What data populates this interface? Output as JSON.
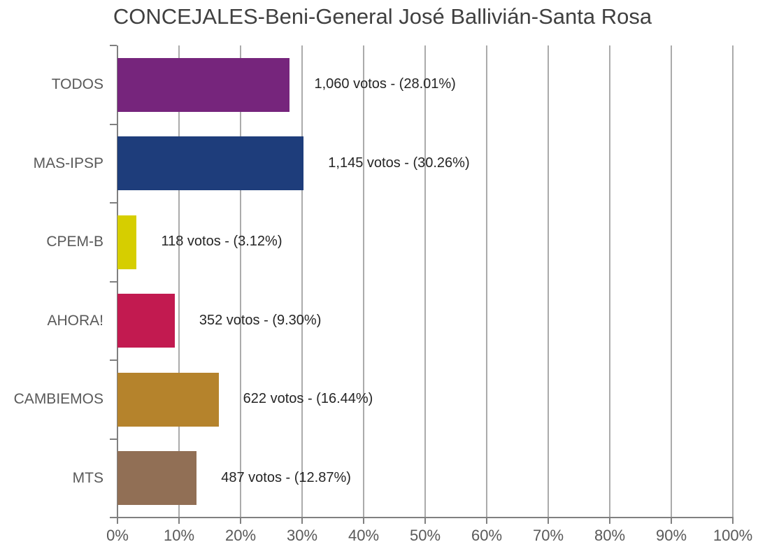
{
  "chart_data": {
    "type": "bar",
    "orientation": "horizontal",
    "title": "CONCEJALES-Beni-General José Ballivián-Santa Rosa",
    "categories": [
      "TODOS",
      "MAS-IPSP",
      "CPEM-B",
      "AHORA!",
      "CAMBIEMOS",
      "MTS"
    ],
    "series": [
      {
        "name": "votos",
        "values_pct": [
          28.01,
          30.26,
          3.12,
          9.3,
          16.44,
          12.87
        ],
        "votes": [
          1060,
          1145,
          118,
          352,
          622,
          487
        ],
        "colors": [
          "#76257C",
          "#1E3D7B",
          "#D6CE00",
          "#C21A50",
          "#B5832C",
          "#916F55"
        ]
      }
    ],
    "data_labels": [
      "1,060 votos - (28.01%)",
      "1,145 votos - (30.26%)",
      "118 votos - (3.12%)",
      "352 votos - (9.30%)",
      "622 votos - (16.44%)",
      "487 votos - (12.87%)"
    ],
    "xlabel": "",
    "ylabel": "",
    "xlim": [
      0,
      100
    ],
    "x_ticks": [
      "0%",
      "10%",
      "20%",
      "30%",
      "40%",
      "50%",
      "60%",
      "70%",
      "80%",
      "90%",
      "100%"
    ],
    "grid": true,
    "legend": false,
    "style": {
      "title_color": "#404040",
      "axis_color": "#808080",
      "grid_color": "#ABABAB",
      "tick_label_color": "#595959",
      "category_label_color": "#595959",
      "data_label_color": "#252525",
      "background": "#FFFFFF"
    }
  }
}
